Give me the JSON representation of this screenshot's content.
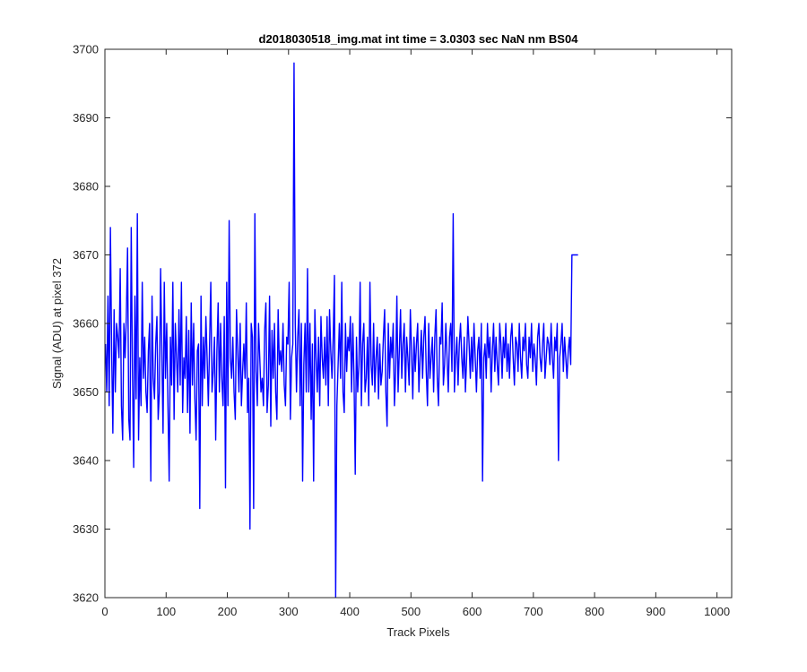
{
  "chart_data": {
    "type": "line",
    "title": "d2018030518_img.mat int time = 3.0303 sec  NaN nm BS04",
    "xlabel": "Track Pixels",
    "ylabel": "Signal (ADU) at pixel 372",
    "xlim": [
      0,
      1024
    ],
    "ylim": [
      3620,
      3700
    ],
    "xticks": [
      0,
      100,
      200,
      300,
      400,
      500,
      600,
      700,
      800,
      900,
      1000
    ],
    "yticks": [
      3620,
      3630,
      3640,
      3650,
      3660,
      3670,
      3680,
      3690,
      3700
    ],
    "grid": false,
    "legend": "none",
    "series": [
      {
        "color": "#0000ff",
        "x_start": 1,
        "x_step": 2,
        "values": [
          3657,
          3650,
          3664,
          3648,
          3674,
          3656,
          3644,
          3662,
          3650,
          3660,
          3658,
          3655,
          3668,
          3648,
          3643,
          3660,
          3655,
          3661,
          3671,
          3646,
          3643,
          3674,
          3653,
          3639,
          3664,
          3649,
          3676,
          3643,
          3655,
          3648,
          3666,
          3652,
          3658,
          3650,
          3647,
          3656,
          3660,
          3637,
          3664,
          3652,
          3649,
          3657,
          3661,
          3646,
          3650,
          3668,
          3656,
          3644,
          3666,
          3652,
          3660,
          3648,
          3637,
          3658,
          3651,
          3666,
          3646,
          3660,
          3655,
          3650,
          3662,
          3651,
          3666,
          3647,
          3655,
          3652,
          3661,
          3647,
          3659,
          3644,
          3663,
          3651,
          3660,
          3649,
          3643,
          3656,
          3657,
          3633,
          3664,
          3648,
          3658,
          3652,
          3661,
          3655,
          3648,
          3657,
          3666,
          3650,
          3653,
          3658,
          3643,
          3656,
          3663,
          3650,
          3660,
          3652,
          3648,
          3661,
          3636,
          3666,
          3648,
          3675,
          3655,
          3652,
          3658,
          3650,
          3646,
          3662,
          3656,
          3650,
          3660,
          3648,
          3653,
          3657,
          3652,
          3663,
          3647,
          3652,
          3630,
          3660,
          3658,
          3633,
          3676,
          3653,
          3648,
          3660,
          3655,
          3650,
          3652,
          3648,
          3659,
          3663,
          3647,
          3651,
          3664,
          3645,
          3659,
          3652,
          3660,
          3650,
          3646,
          3662,
          3654,
          3656,
          3653,
          3660,
          3651,
          3648,
          3658,
          3657,
          3666,
          3646,
          3655,
          3657,
          3698,
          3660,
          3650,
          3658,
          3662,
          3648,
          3660,
          3637,
          3654,
          3660,
          3650,
          3668,
          3650,
          3660,
          3646,
          3657,
          3637,
          3662,
          3655,
          3650,
          3658,
          3648,
          3661,
          3655,
          3652,
          3658,
          3651,
          3661,
          3648,
          3662,
          3656,
          3652,
          3658,
          3667,
          3620,
          3648,
          3654,
          3660,
          3652,
          3666,
          3650,
          3647,
          3660,
          3653,
          3658,
          3656,
          3661,
          3650,
          3660,
          3652,
          3638,
          3658,
          3650,
          3654,
          3666,
          3648,
          3657,
          3660,
          3650,
          3652,
          3658,
          3648,
          3666,
          3654,
          3651,
          3660,
          3650,
          3655,
          3658,
          3649,
          3657,
          3651,
          3653,
          3658,
          3662,
          3650,
          3645,
          3660,
          3652,
          3658,
          3655,
          3660,
          3648,
          3653,
          3664,
          3650,
          3656,
          3662,
          3652,
          3657,
          3660,
          3650,
          3658,
          3655,
          3651,
          3662,
          3656,
          3649,
          3658,
          3653,
          3657,
          3660,
          3650,
          3655,
          3659,
          3652,
          3658,
          3661,
          3653,
          3648,
          3660,
          3652,
          3655,
          3658,
          3650,
          3658,
          3662,
          3652,
          3648,
          3658,
          3657,
          3663,
          3651,
          3654,
          3660,
          3655,
          3650,
          3658,
          3660,
          3653,
          3676,
          3650,
          3655,
          3658,
          3651,
          3657,
          3660,
          3655,
          3652,
          3658,
          3650,
          3655,
          3661,
          3657,
          3652,
          3658,
          3653,
          3660,
          3655,
          3650,
          3656,
          3658,
          3652,
          3660,
          3637,
          3655,
          3657,
          3652,
          3660,
          3655,
          3658,
          3650,
          3656,
          3660,
          3653,
          3658,
          3654,
          3651,
          3660,
          3657,
          3652,
          3658,
          3655,
          3660,
          3653,
          3657,
          3652,
          3658,
          3660,
          3655,
          3651,
          3658,
          3657,
          3653,
          3660,
          3655,
          3652,
          3658,
          3656,
          3660,
          3654,
          3652,
          3658,
          3655,
          3660,
          3653,
          3657,
          3655,
          3651,
          3658,
          3660,
          3655,
          3653,
          3657,
          3660,
          3652,
          3655,
          3658,
          3657,
          3654,
          3660,
          3655,
          3652,
          3658,
          3656,
          3660,
          3640,
          3655,
          3657,
          3660,
          3653,
          3658,
          3655,
          3652,
          3656,
          3658,
          3654,
          3670,
          3670,
          3670,
          3670,
          3670,
          3670
        ]
      }
    ]
  }
}
